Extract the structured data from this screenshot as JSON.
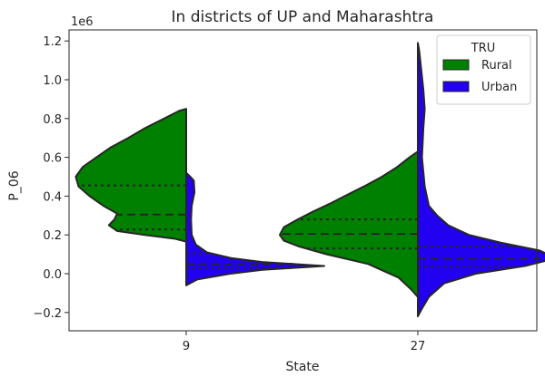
{
  "chart_data": {
    "type": "violin",
    "split": true,
    "title": "In districts of UP and Maharashtra",
    "xlabel": "State",
    "ylabel": "P_06",
    "y_offset_text": "1e6",
    "ylim": [
      -0.25,
      1.27
    ],
    "yticks": [
      -0.2,
      0.0,
      0.2,
      0.4,
      0.6,
      0.8,
      1.0,
      1.2
    ],
    "ytick_labels": [
      "−0.2",
      "0.0",
      "0.2",
      "0.4",
      "0.6",
      "0.8",
      "1.0",
      "1.2"
    ],
    "categories": [
      "9",
      "27"
    ],
    "legend": {
      "title": "TRU",
      "placement": "top-right",
      "entries": [
        "Rural",
        "Urban"
      ]
    },
    "series": [
      {
        "name": "Rural",
        "color": "#008000",
        "side": "left",
        "violins": [
          {
            "category": "9",
            "profile": [
              [
                0.165,
                0.0
              ],
              [
                0.18,
                0.08
              ],
              [
                0.2,
                0.3
              ],
              [
                0.22,
                0.5
              ],
              [
                0.25,
                0.56
              ],
              [
                0.28,
                0.52
              ],
              [
                0.31,
                0.5
              ],
              [
                0.35,
                0.6
              ],
              [
                0.4,
                0.7
              ],
              [
                0.45,
                0.78
              ],
              [
                0.5,
                0.8
              ],
              [
                0.55,
                0.75
              ],
              [
                0.6,
                0.65
              ],
              [
                0.65,
                0.55
              ],
              [
                0.7,
                0.42
              ],
              [
                0.75,
                0.3
              ],
              [
                0.8,
                0.16
              ],
              [
                0.84,
                0.05
              ],
              [
                0.85,
                0.0
              ]
            ],
            "quartiles": [
              0.228,
              0.305,
              0.455
            ]
          },
          {
            "category": "27",
            "profile": [
              [
                -0.12,
                0.0
              ],
              [
                -0.08,
                0.05
              ],
              [
                -0.02,
                0.14
              ],
              [
                0.05,
                0.36
              ],
              [
                0.1,
                0.66
              ],
              [
                0.14,
                0.86
              ],
              [
                0.17,
                0.97
              ],
              [
                0.2,
                1.0
              ],
              [
                0.24,
                0.97
              ],
              [
                0.28,
                0.87
              ],
              [
                0.32,
                0.76
              ],
              [
                0.36,
                0.64
              ],
              [
                0.4,
                0.53
              ],
              [
                0.45,
                0.39
              ],
              [
                0.5,
                0.26
              ],
              [
                0.55,
                0.15
              ],
              [
                0.6,
                0.06
              ],
              [
                0.63,
                0.0
              ]
            ],
            "quartiles": [
              0.13,
              0.205,
              0.28
            ]
          }
        ]
      },
      {
        "name": "Urban",
        "color": "#2200f0",
        "side": "right",
        "violins": [
          {
            "category": "9",
            "profile": [
              [
                -0.06,
                0.0
              ],
              [
                -0.03,
                0.08
              ],
              [
                0.0,
                0.32
              ],
              [
                0.02,
                0.55
              ],
              [
                0.04,
                1.0
              ],
              [
                0.06,
                0.55
              ],
              [
                0.08,
                0.33
              ],
              [
                0.11,
                0.15
              ],
              [
                0.15,
                0.07
              ],
              [
                0.2,
                0.04
              ],
              [
                0.28,
                0.035
              ],
              [
                0.35,
                0.04
              ],
              [
                0.42,
                0.06
              ],
              [
                0.48,
                0.055
              ],
              [
                0.5,
                0.03
              ],
              [
                0.52,
                0.0
              ]
            ],
            "quartiles": [
              0.03,
              0.05,
              0.105
            ]
          },
          {
            "category": "27",
            "profile": [
              [
                -0.22,
                0.0
              ],
              [
                -0.18,
                0.03
              ],
              [
                -0.12,
                0.08
              ],
              [
                -0.05,
                0.19
              ],
              [
                0.0,
                0.42
              ],
              [
                0.04,
                0.78
              ],
              [
                0.08,
                1.0
              ],
              [
                0.12,
                0.88
              ],
              [
                0.16,
                0.6
              ],
              [
                0.2,
                0.37
              ],
              [
                0.25,
                0.22
              ],
              [
                0.3,
                0.14
              ],
              [
                0.35,
                0.08
              ],
              [
                0.45,
                0.05
              ],
              [
                0.6,
                0.03
              ],
              [
                0.75,
                0.04
              ],
              [
                0.85,
                0.05
              ],
              [
                0.95,
                0.04
              ],
              [
                1.05,
                0.025
              ],
              [
                1.15,
                0.01
              ],
              [
                1.19,
                0.0
              ]
            ],
            "quartiles": [
              0.035,
              0.075,
              0.14
            ]
          }
        ]
      }
    ]
  }
}
